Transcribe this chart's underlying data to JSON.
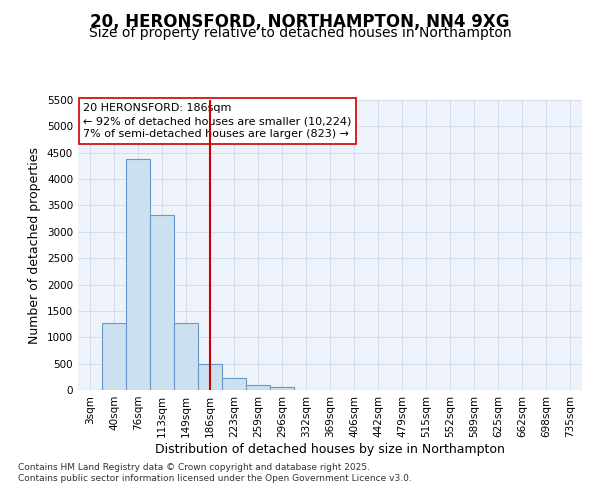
{
  "title_line1": "20, HERONSFORD, NORTHAMPTON, NN4 9XG",
  "title_line2": "Size of property relative to detached houses in Northampton",
  "xlabel": "Distribution of detached houses by size in Northampton",
  "ylabel": "Number of detached properties",
  "categories": [
    "3sqm",
    "40sqm",
    "76sqm",
    "113sqm",
    "149sqm",
    "186sqm",
    "223sqm",
    "259sqm",
    "296sqm",
    "332sqm",
    "369sqm",
    "406sqm",
    "442sqm",
    "479sqm",
    "515sqm",
    "552sqm",
    "589sqm",
    "625sqm",
    "662sqm",
    "698sqm",
    "735sqm"
  ],
  "values": [
    0,
    1280,
    4380,
    3320,
    1280,
    500,
    230,
    100,
    55,
    0,
    0,
    0,
    0,
    0,
    0,
    0,
    0,
    0,
    0,
    0,
    0
  ],
  "bar_color": "#cce0f0",
  "bar_edge_color": "#6699cc",
  "vline_x_index": 5,
  "vline_color": "#cc0000",
  "annotation_line1": "20 HERONSFORD: 186sqm",
  "annotation_line2": "← 92% of detached houses are smaller (10,224)",
  "annotation_line3": "7% of semi-detached houses are larger (823) →",
  "annotation_box_color": "#ffffff",
  "annotation_box_edge": "#cc0000",
  "ylim": [
    0,
    5500
  ],
  "yticks": [
    0,
    500,
    1000,
    1500,
    2000,
    2500,
    3000,
    3500,
    4000,
    4500,
    5000,
    5500
  ],
  "grid_color": "#c8d4e8",
  "bg_color": "#eef2fa",
  "footnote1": "Contains HM Land Registry data © Crown copyright and database right 2025.",
  "footnote2": "Contains public sector information licensed under the Open Government Licence v3.0.",
  "title_fontsize": 12,
  "subtitle_fontsize": 10,
  "tick_fontsize": 7.5,
  "label_fontsize": 9,
  "footnote_fontsize": 6.5
}
